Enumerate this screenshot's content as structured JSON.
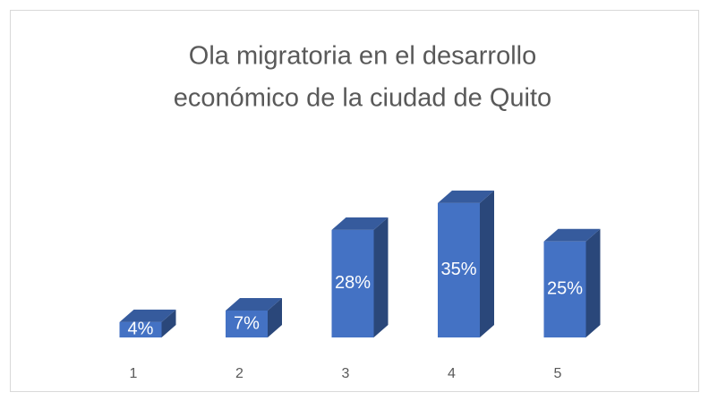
{
  "chart_data": {
    "type": "bar3d",
    "title": [
      "Ola migratoria en el desarrollo",
      "económico de la ciudad de Quito"
    ],
    "categories": [
      "1",
      "2",
      "3",
      "4",
      "5"
    ],
    "values": [
      4,
      7,
      28,
      35,
      25
    ],
    "value_labels": [
      "4%",
      "7%",
      "28%",
      "35%",
      "25%"
    ],
    "color": "#4472c4"
  }
}
